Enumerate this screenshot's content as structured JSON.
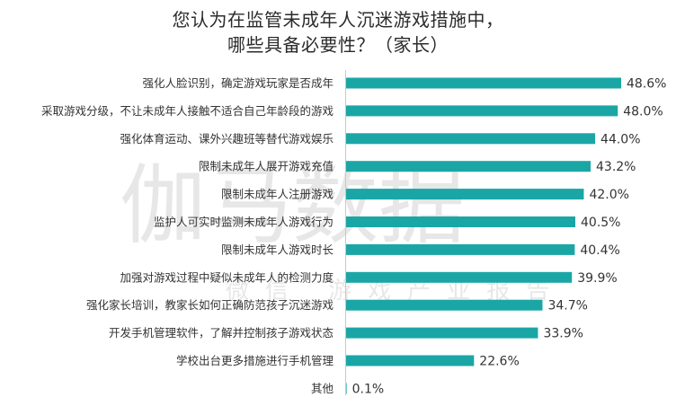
{
  "chart_data": {
    "type": "bar",
    "orientation": "horizontal",
    "title_lines": [
      "您认为在监管未成年人沉迷游戏措施中，",
      "哪些具备必要性？（家长）"
    ],
    "categories": [
      "强化人脸识别，确定游戏玩家是否成年",
      "采取游戏分级，不让未成年人接触不适合自己年龄段的游戏",
      "强化体育运动、课外兴趣班等替代游戏娱乐",
      "限制未成年人展开游戏充值",
      "限制未成年人注册游戏",
      "监护人可实时监测未成年人游戏行为",
      "限制未成年人游戏时长",
      "加强对游戏过程中疑似未成年人的检测力度",
      "强化家长培训，教家长如何正确防范孩子沉迷游戏",
      "开发手机管理软件，了解并控制孩子游戏状态",
      "学校出台更多措施进行手机管理",
      "其他"
    ],
    "values": [
      48.6,
      48.0,
      44.0,
      43.2,
      42.0,
      40.5,
      40.4,
      39.9,
      34.7,
      33.9,
      22.6,
      0.1
    ],
    "value_labels": [
      "48.6%",
      "48.0%",
      "44.0%",
      "43.2%",
      "42.0%",
      "40.5%",
      "40.4%",
      "39.9%",
      "34.7%",
      "33.9%",
      "22.6%",
      "0.1%"
    ],
    "unit": "%",
    "xlim": [
      0,
      48.6
    ],
    "bar_color": "#1ba6a6",
    "grid": false,
    "legend": "none",
    "watermark": "伽马数据 微信 游戏产业报告"
  }
}
